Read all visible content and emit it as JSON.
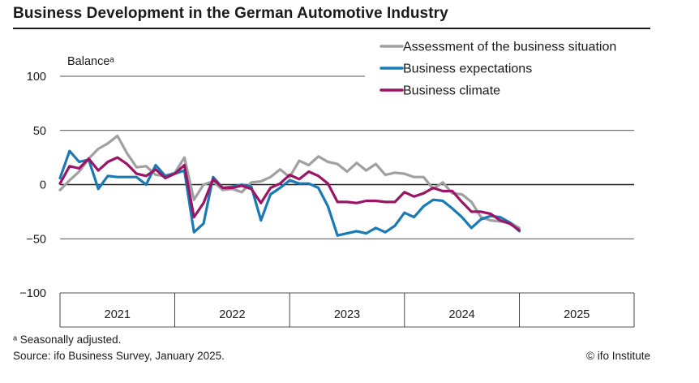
{
  "title": "Business Development in the German Automotive Industry",
  "footnote": "ᵃ Seasonally adjusted.",
  "source": "Source: ifo Business Survey, January 2025.",
  "credit": "© ifo Institute",
  "colors": {
    "assessment": "#a0a0a0",
    "expectations": "#1a7ab5",
    "climate": "#9b1466"
  },
  "chart_data": {
    "type": "line",
    "ylabel": "Balanceᵃ",
    "ylim": [
      -100,
      100
    ],
    "yticks": [
      100,
      50,
      0,
      -50,
      -100
    ],
    "xlim": [
      "2020-12",
      "2025-12"
    ],
    "xticks": [
      "2021",
      "2022",
      "2023",
      "2024",
      "2025"
    ],
    "grid": true,
    "legend": "top-right",
    "x": [
      "2020-12",
      "2021-01",
      "2021-02",
      "2021-03",
      "2021-04",
      "2021-05",
      "2021-06",
      "2021-07",
      "2021-08",
      "2021-09",
      "2021-10",
      "2021-11",
      "2021-12",
      "2022-01",
      "2022-02",
      "2022-03",
      "2022-04",
      "2022-05",
      "2022-06",
      "2022-07",
      "2022-08",
      "2022-09",
      "2022-10",
      "2022-11",
      "2022-12",
      "2023-01",
      "2023-02",
      "2023-03",
      "2023-04",
      "2023-05",
      "2023-06",
      "2023-07",
      "2023-08",
      "2023-09",
      "2023-10",
      "2023-11",
      "2023-12",
      "2024-01",
      "2024-02",
      "2024-03",
      "2024-04",
      "2024-05",
      "2024-06",
      "2024-07",
      "2024-08",
      "2024-09",
      "2024-10",
      "2024-11",
      "2024-12"
    ],
    "series": [
      {
        "name": "Assessment of the business situation",
        "values": [
          -5,
          4,
          12,
          24,
          33,
          38,
          45,
          29,
          16,
          17,
          9,
          8,
          11,
          25,
          -14,
          0,
          3,
          -5,
          -4,
          -7,
          2,
          3,
          7,
          14,
          7,
          22,
          18,
          26,
          21,
          19,
          12,
          20,
          13,
          19,
          9,
          11,
          10,
          7,
          7,
          -4,
          2,
          -8,
          -9,
          -16,
          -30,
          -33,
          -34,
          -35,
          -40
        ]
      },
      {
        "name": "Business expectations",
        "values": [
          6,
          31,
          21,
          23,
          -4,
          8,
          7,
          7,
          7,
          0,
          18,
          8,
          10,
          13,
          -44,
          -36,
          7,
          -3,
          -2,
          0,
          -2,
          -33,
          -9,
          -3,
          4,
          1,
          1,
          -3,
          -20,
          -47,
          -45,
          -43,
          -45,
          -40,
          -44,
          -38,
          -26,
          -30,
          -20,
          -14,
          -15,
          -22,
          -30,
          -40,
          -32,
          -29,
          -30,
          -35,
          -43
        ]
      },
      {
        "name": "Business climate",
        "values": [
          1,
          17,
          15,
          24,
          13,
          21,
          25,
          19,
          10,
          8,
          14,
          6,
          10,
          18,
          -30,
          -17,
          5,
          -3,
          -3,
          -1,
          -4,
          -17,
          -3,
          1,
          9,
          5,
          12,
          8,
          1,
          -16,
          -16,
          -17,
          -15,
          -15,
          -16,
          -16,
          -7,
          -11,
          -8,
          -3,
          -6,
          -6,
          -16,
          -25,
          -25,
          -27,
          -33,
          -36,
          -42
        ]
      }
    ]
  }
}
